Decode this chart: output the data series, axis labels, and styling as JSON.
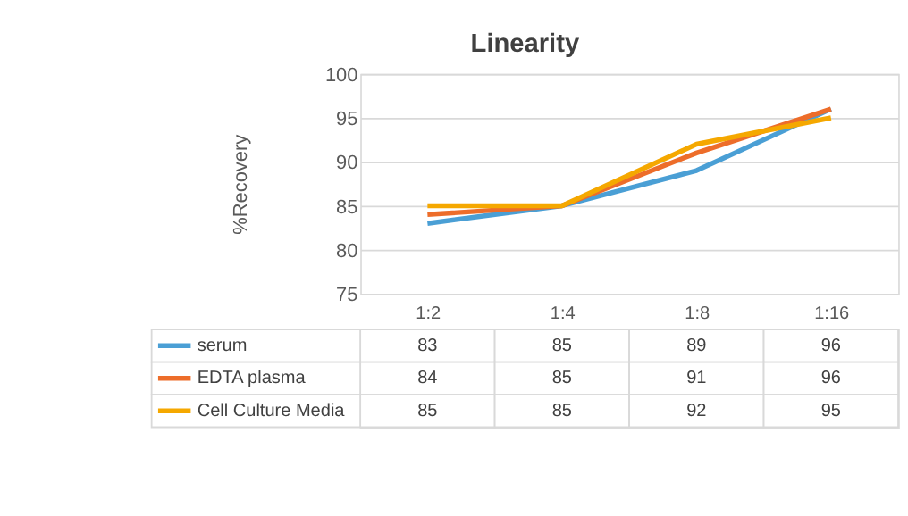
{
  "chart_data": {
    "type": "line",
    "title": "Linearity",
    "ylabel": "%Recovery",
    "categories": [
      "1:2",
      "1:4",
      "1:8",
      "1:16"
    ],
    "series": [
      {
        "name": "serum",
        "color": "#4a9fd5",
        "values": [
          83,
          85,
          89,
          96
        ]
      },
      {
        "name": "EDTA plasma",
        "color": "#ed6d2a",
        "values": [
          84,
          85,
          91,
          96
        ]
      },
      {
        "name": "Cell Culture Media",
        "color": "#f5a800",
        "values": [
          85,
          85,
          92,
          95
        ]
      }
    ],
    "ylim": [
      75,
      100
    ],
    "yticks": [
      75,
      80,
      85,
      90,
      95,
      100
    ],
    "grid": "y",
    "legend": "bottom",
    "data_labels": true,
    "line_style": "solid",
    "marker": "none"
  }
}
